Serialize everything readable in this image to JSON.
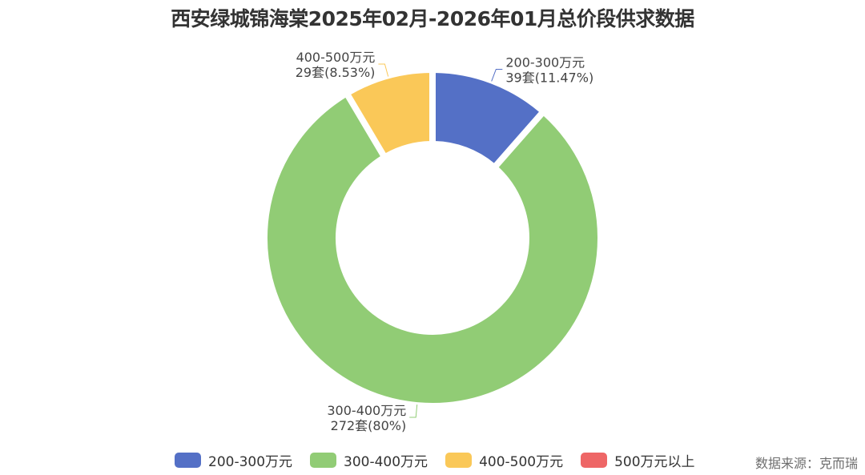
{
  "title": "西安绿城锦海棠2025年02月-2026年01月总价段供求数据",
  "source": "数据来源：克而瑞",
  "chart_data": {
    "type": "pie",
    "style": "donut",
    "title": "西安绿城锦海棠2025年02月-2026年01月总价段供求数据",
    "legend_position": "bottom",
    "slices": [
      {
        "label": "200-300万元",
        "value": 39,
        "percent": "11.47%",
        "unit": "套",
        "color": "#5470c6"
      },
      {
        "label": "300-400万元",
        "value": 272,
        "percent": "80%",
        "unit": "套",
        "color": "#91cc75"
      },
      {
        "label": "400-500万元",
        "value": 29,
        "percent": "8.53%",
        "unit": "套",
        "color": "#fac858"
      },
      {
        "label": "500万元以上",
        "value": 0,
        "percent": "0%",
        "unit": "套",
        "color": "#ee6666"
      }
    ],
    "data_labels": [
      {
        "name": "200-300万元",
        "text": "39套(11.47%)"
      },
      {
        "name": "300-400万元",
        "text": "272套(80%)"
      },
      {
        "name": "400-500万元",
        "text": "29套(8.53%)"
      }
    ]
  }
}
